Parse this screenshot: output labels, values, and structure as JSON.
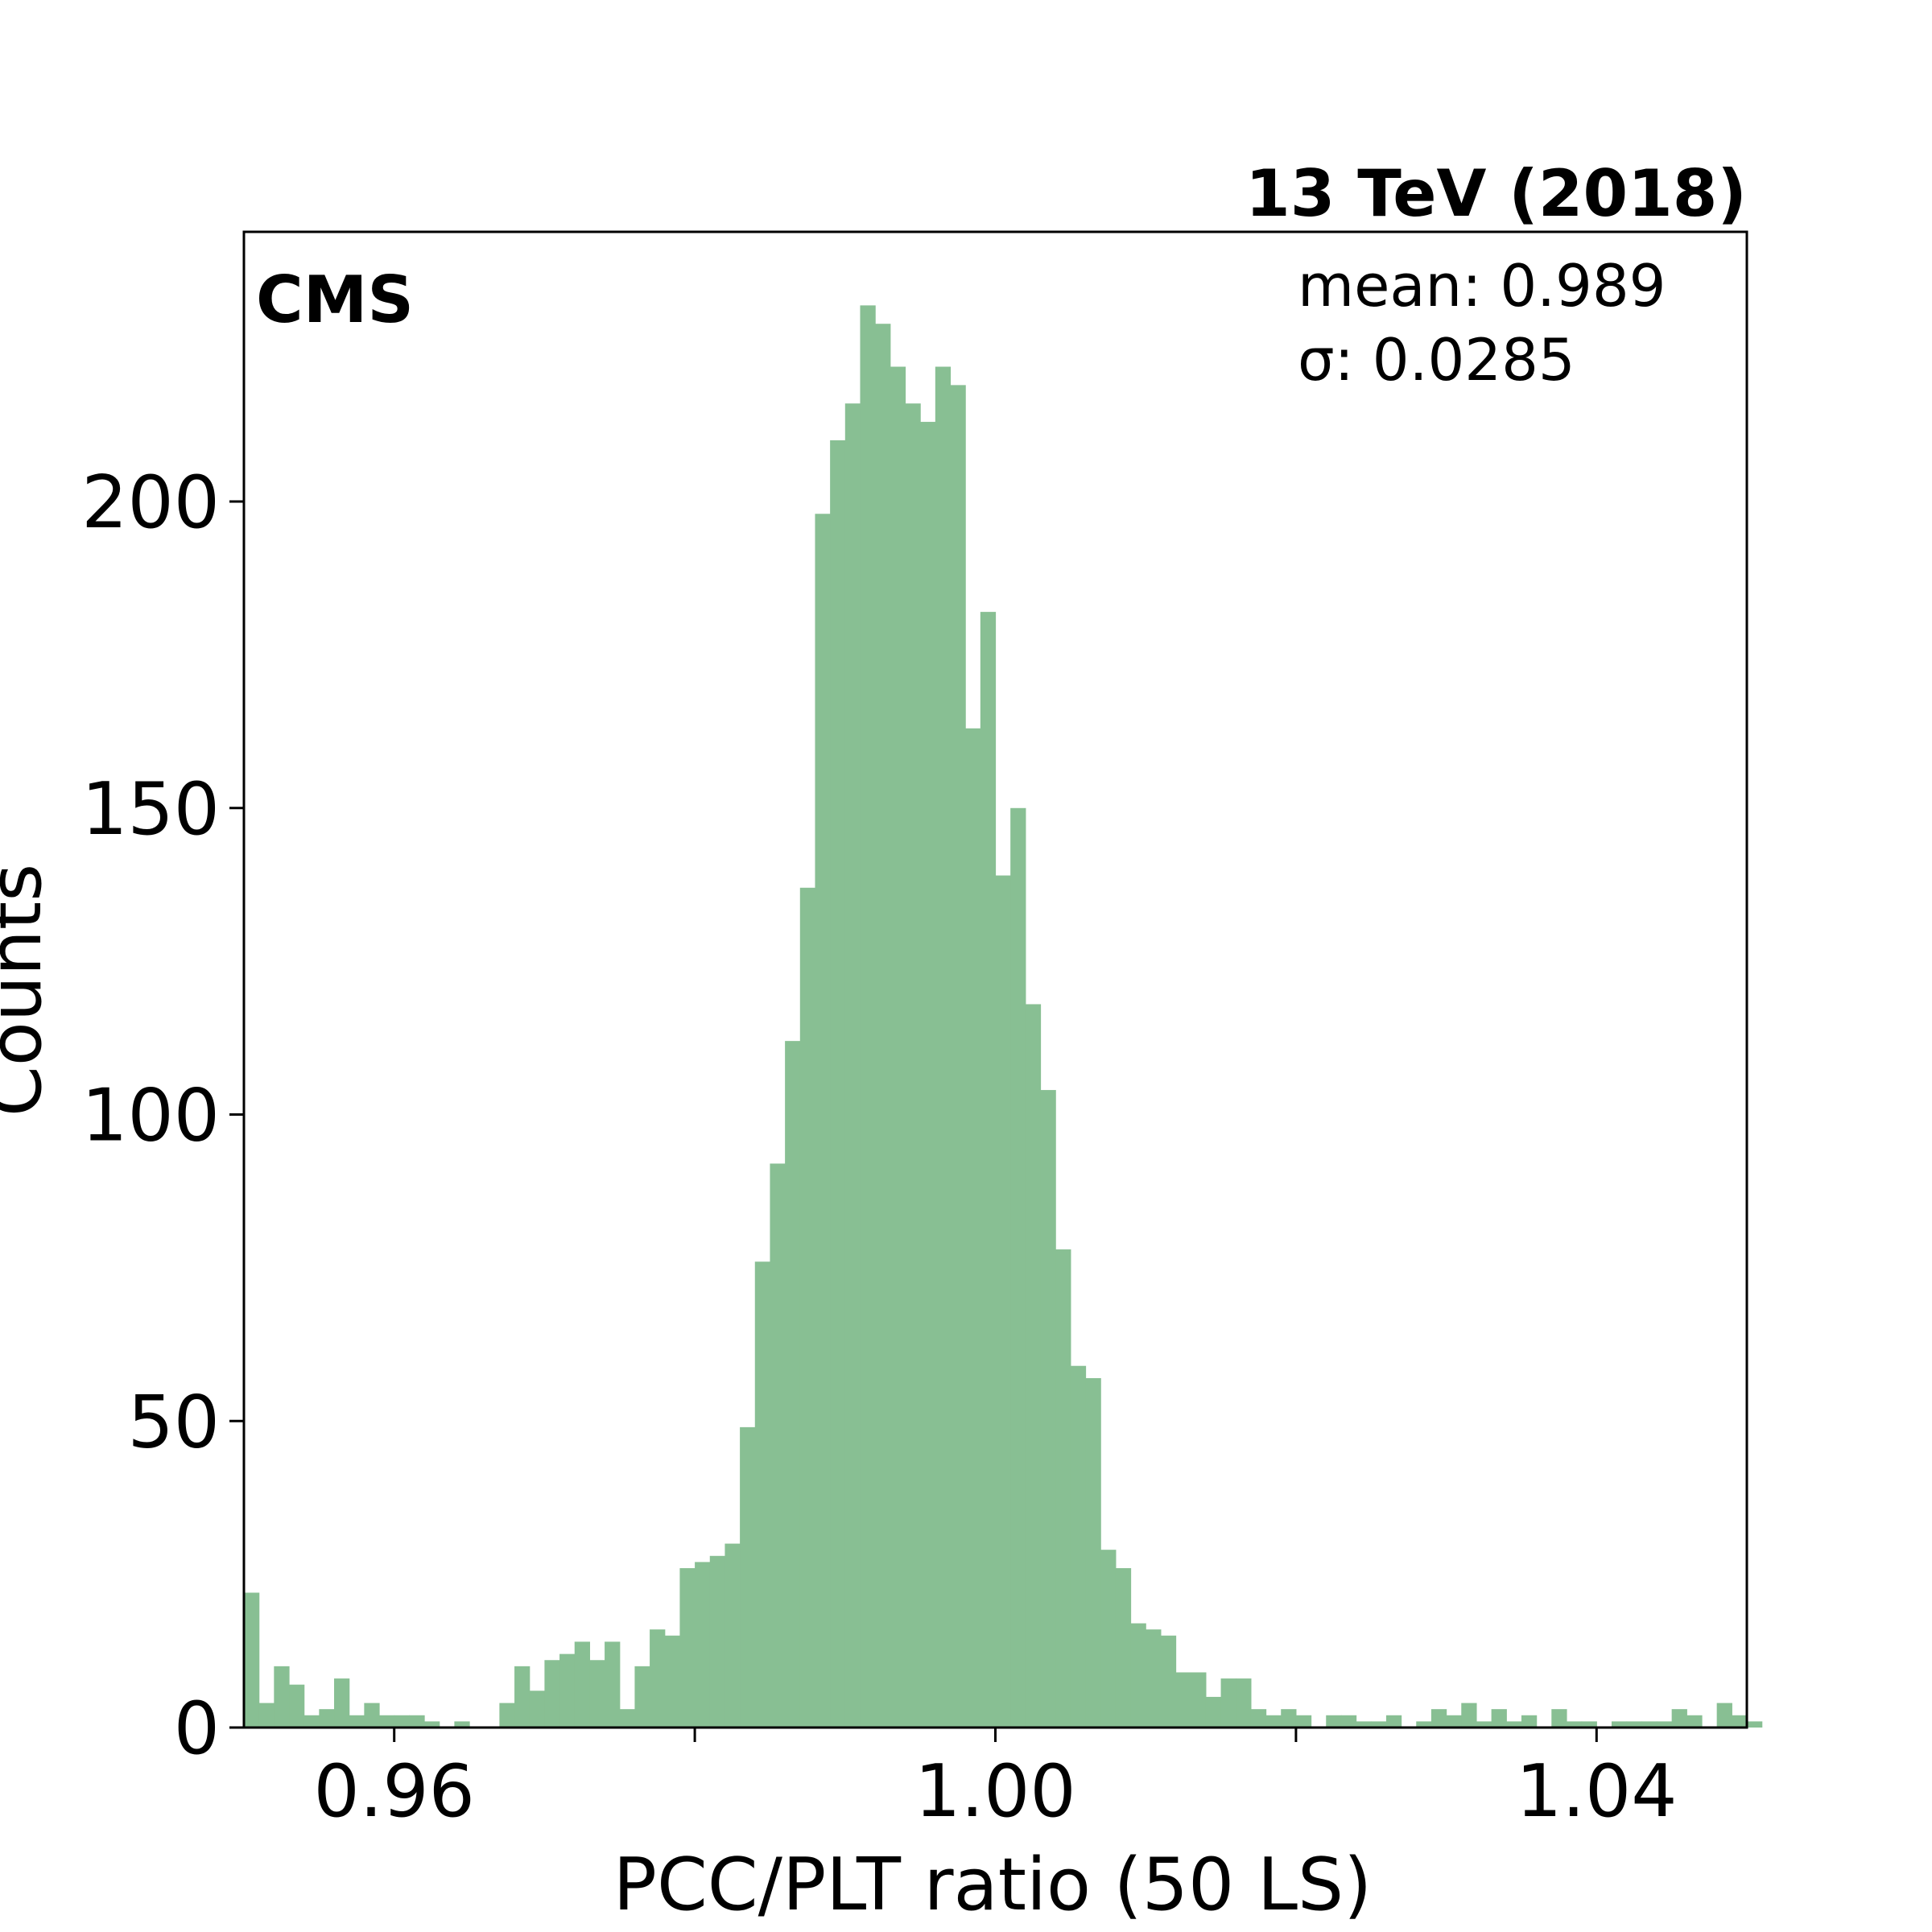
{
  "chart_data": {
    "type": "bar",
    "title": "13 TeV (2018)",
    "experiment_label": "CMS",
    "xlabel": "PCC/PLT ratio (50 LS)",
    "ylabel": "Counts",
    "stats": {
      "mean": "mean: 0.989",
      "sigma": "σ: 0.0285"
    },
    "xlim": [
      0.95,
      1.05
    ],
    "ylim": [
      0,
      244
    ],
    "xticks": [
      0.96,
      1.0,
      1.04
    ],
    "xtick_labels": [
      "0.96",
      "1.00",
      "1.04"
    ],
    "yticks": [
      0,
      50,
      100,
      150,
      200
    ],
    "ytick_labels": [
      "0",
      "50",
      "100",
      "150",
      "200"
    ],
    "grid": false,
    "bar_color": "#88bf93",
    "bin_start": 0.95,
    "bin_width": 0.001,
    "values": [
      22,
      4,
      10,
      7,
      2,
      3,
      8,
      2,
      4,
      2,
      2,
      2,
      1,
      0,
      1,
      0,
      0,
      4,
      10,
      6,
      11,
      12,
      14,
      11,
      14,
      3,
      10,
      16,
      15,
      26,
      27,
      28,
      30,
      49,
      76,
      92,
      112,
      137,
      198,
      210,
      216,
      232,
      229,
      222,
      216,
      213,
      222,
      219,
      163,
      182,
      139,
      150,
      118,
      104,
      78,
      59,
      57,
      29,
      26,
      17,
      16,
      15,
      9,
      9,
      5,
      8,
      8,
      3,
      2,
      3,
      2,
      0,
      2,
      2,
      1,
      1,
      2,
      0,
      1,
      3,
      2,
      4,
      1,
      3,
      1,
      2,
      0,
      3,
      1,
      1,
      0,
      1,
      1,
      1,
      1,
      3,
      2,
      0,
      4,
      2,
      1
    ]
  }
}
